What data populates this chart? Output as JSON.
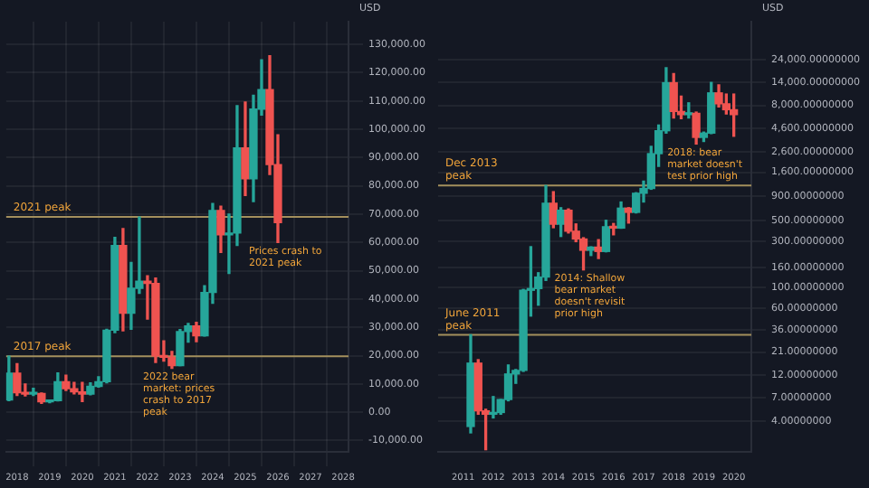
{
  "chart_data": [
    {
      "type": "candlestick",
      "ylabel": "USD",
      "x": [
        "2017-10",
        "2018-01",
        "2018-04",
        "2018-07",
        "2018-10",
        "2019-01",
        "2019-04",
        "2019-07",
        "2019-10",
        "2020-01",
        "2020-04",
        "2020-07",
        "2020-10",
        "2021-01",
        "2021-04",
        "2021-07",
        "2021-10",
        "2022-01",
        "2022-04",
        "2022-07",
        "2022-10",
        "2023-01",
        "2023-04",
        "2023-07",
        "2023-10",
        "2024-01",
        "2024-04",
        "2024-07",
        "2024-10",
        "2025-01",
        "2025-04",
        "2025-07",
        "2025-10",
        "2026-01"
      ],
      "ohlc": [
        [
          4340,
          19800,
          4100,
          13800
        ],
        [
          13800,
          17200,
          5900,
          6900
        ],
        [
          6900,
          9990,
          5800,
          6400
        ],
        [
          6400,
          8500,
          5900,
          6600
        ],
        [
          6600,
          6800,
          3150,
          3700
        ],
        [
          3700,
          4200,
          3350,
          4100
        ],
        [
          4100,
          13900,
          4050,
          10800
        ],
        [
          10800,
          13100,
          7700,
          8300
        ],
        [
          8300,
          10500,
          6500,
          7200
        ],
        [
          7200,
          10500,
          3800,
          6400
        ],
        [
          6400,
          10400,
          6200,
          9150
        ],
        [
          9150,
          12500,
          8900,
          10800
        ],
        [
          10800,
          29300,
          10400,
          29000
        ],
        [
          29000,
          61800,
          28100,
          58900
        ],
        [
          58900,
          64900,
          28800,
          35000
        ],
        [
          35000,
          52900,
          29300,
          43800
        ],
        [
          43800,
          69000,
          42000,
          46300
        ],
        [
          46300,
          48200,
          32900,
          45500
        ],
        [
          45500,
          47400,
          17600,
          19900
        ],
        [
          19900,
          25200,
          18100,
          19400
        ],
        [
          19400,
          21500,
          15500,
          16500
        ],
        [
          16500,
          29200,
          16500,
          28500
        ],
        [
          28500,
          31400,
          24800,
          30500
        ],
        [
          30500,
          31800,
          24900,
          27000
        ],
        [
          27000,
          44700,
          26900,
          42300
        ],
        [
          42300,
          73800,
          38500,
          71300
        ],
        [
          71300,
          72800,
          56500,
          62700
        ],
        [
          62700,
          70000,
          49000,
          63300
        ],
        [
          63300,
          108300,
          58900,
          93400
        ],
        [
          93400,
          109600,
          76600,
          82500
        ],
        [
          82500,
          112000,
          74400,
          107100
        ],
        [
          107100,
          124500,
          105000,
          114000
        ],
        [
          114000,
          126000,
          84000,
          87500
        ],
        [
          87500,
          98000,
          60000,
          67000
        ]
      ],
      "xlim": [
        "2017-09",
        "2028-03"
      ],
      "xticks": [
        "2018",
        "2019",
        "2020",
        "2021",
        "2022",
        "2023",
        "2024",
        "2025",
        "2026",
        "2027",
        "2028"
      ],
      "ylim": [
        -14000,
        138000
      ],
      "yticks": [
        {
          "value": -10000,
          "label": "-10,000.00"
        },
        {
          "value": 0,
          "label": "0.00"
        },
        {
          "value": 10000,
          "label": "10,000.00"
        },
        {
          "value": 20000,
          "label": "20,000.00"
        },
        {
          "value": 30000,
          "label": "30,000.00"
        },
        {
          "value": 40000,
          "label": "40,000.00"
        },
        {
          "value": 50000,
          "label": "50,000.00"
        },
        {
          "value": 60000,
          "label": "60,000.00"
        },
        {
          "value": 70000,
          "label": "70,000.00"
        },
        {
          "value": 80000,
          "label": "80,000.00"
        },
        {
          "value": 90000,
          "label": "90,000.00"
        },
        {
          "value": 100000,
          "label": "100,000.00"
        },
        {
          "value": 110000,
          "label": "110,000.00"
        },
        {
          "value": 120000,
          "label": "120,000.00"
        },
        {
          "value": 130000,
          "label": "130,000.00"
        }
      ],
      "grid": true,
      "ref_lines": [
        {
          "axis": "y",
          "value": 69000,
          "label": "2021 peak",
          "color": "#a38f5c"
        },
        {
          "axis": "y",
          "value": 19800,
          "label": "2017 peak",
          "color": "#a38f5c"
        }
      ],
      "annotations": [
        {
          "text": "2022 bear market: prices crash to 2017 peak",
          "x": "2022-10",
          "y": 15500
        },
        {
          "text": "Prices crash to 2021 peak",
          "x": "2026-01",
          "y": 60000
        }
      ]
    },
    {
      "type": "candlestick",
      "ylabel": "USD",
      "log": true,
      "x": [
        "2011-04",
        "2011-07",
        "2011-10",
        "2012-01",
        "2012-04",
        "2012-07",
        "2012-10",
        "2013-01",
        "2013-04",
        "2013-07",
        "2013-10",
        "2014-01",
        "2014-04",
        "2014-07",
        "2014-10",
        "2015-01",
        "2015-04",
        "2015-07",
        "2015-10",
        "2016-01",
        "2016-04",
        "2016-07",
        "2016-10",
        "2017-01",
        "2017-04",
        "2017-07",
        "2017-10",
        "2018-01",
        "2018-04",
        "2018-07",
        "2018-10",
        "2019-01",
        "2019-04",
        "2019-07",
        "2019-10",
        "2020-01"
      ],
      "ohlc": [
        [
          3.5,
          31.9,
          3,
          16.1
        ],
        [
          16.1,
          17.5,
          4.7,
          5.1
        ],
        [
          5.1,
          5.3,
          2,
          4.7
        ],
        [
          4.7,
          7.2,
          4.3,
          4.9
        ],
        [
          4.9,
          6.7,
          4.7,
          6.7
        ],
        [
          6.7,
          15.4,
          6.5,
          12.4
        ],
        [
          12.4,
          13.8,
          9.9,
          13.5
        ],
        [
          13.5,
          95,
          13.2,
          93
        ],
        [
          93,
          266,
          50,
          97
        ],
        [
          97,
          142,
          65,
          128
        ],
        [
          128,
          1160,
          118,
          757
        ],
        [
          757,
          1000,
          420,
          457
        ],
        [
          457,
          680,
          340,
          640
        ],
        [
          640,
          660,
          370,
          386
        ],
        [
          386,
          460,
          300,
          320
        ],
        [
          320,
          330,
          152,
          244
        ],
        [
          244,
          265,
          215,
          263
        ],
        [
          263,
          315,
          200,
          237
        ],
        [
          237,
          502,
          235,
          430
        ],
        [
          430,
          465,
          354,
          416
        ],
        [
          416,
          780,
          415,
          673
        ],
        [
          673,
          680,
          470,
          608
        ],
        [
          608,
          975,
          600,
          963
        ],
        [
          963,
          1290,
          780,
          1080
        ],
        [
          1080,
          2980,
          1060,
          2500
        ],
        [
          2500,
          4980,
          1840,
          4340
        ],
        [
          4340,
          19800,
          4100,
          13800
        ],
        [
          13800,
          17200,
          5900,
          6900
        ],
        [
          6900,
          9990,
          5800,
          6400
        ],
        [
          6400,
          8500,
          5900,
          6600
        ],
        [
          6600,
          6800,
          3150,
          3700
        ],
        [
          3700,
          4200,
          3350,
          4100
        ],
        [
          4100,
          13900,
          4050,
          10800
        ],
        [
          10800,
          13100,
          7700,
          8300
        ],
        [
          8300,
          10500,
          6500,
          7200
        ],
        [
          7200,
          10500,
          3800,
          6400
        ]
      ],
      "xlim": [
        "2010-03",
        "2020-08"
      ],
      "xticks": [
        "2011",
        "2012",
        "2013",
        "2014",
        "2015",
        "2016",
        "2017",
        "2018",
        "2019",
        "2020"
      ],
      "ylim": [
        1.9,
        60000
      ],
      "yticks": [
        {
          "value": 4,
          "label": "4.00000000"
        },
        {
          "value": 7,
          "label": "7.00000000"
        },
        {
          "value": 12,
          "label": "12.00000000"
        },
        {
          "value": 21,
          "label": "21.00000000"
        },
        {
          "value": 36,
          "label": "36.00000000"
        },
        {
          "value": 60,
          "label": "60.00000000"
        },
        {
          "value": 100,
          "label": "100.00000000"
        },
        {
          "value": 160,
          "label": "160.00000000"
        },
        {
          "value": 300,
          "label": "300.00000000"
        },
        {
          "value": 500,
          "label": "500.00000000"
        },
        {
          "value": 900,
          "label": "900.00000000"
        },
        {
          "value": 1600,
          "label": "1,600.00000000"
        },
        {
          "value": 2600,
          "label": "2,600.00000000"
        },
        {
          "value": 4600,
          "label": "4,600.00000000"
        },
        {
          "value": 8000,
          "label": "8,000.00000000"
        },
        {
          "value": 14000,
          "label": "14,000.00000000"
        },
        {
          "value": 24000,
          "label": "24,000.00000000"
        }
      ],
      "grid": "y",
      "ref_lines": [
        {
          "axis": "y",
          "value": 1160,
          "label": "Dec 2013 peak",
          "color": "#a38f5c"
        },
        {
          "axis": "y",
          "value": 31.9,
          "label": "June 2011 peak",
          "color": "#a38f5c"
        }
      ],
      "annotations": [
        {
          "text": "2014: Shallow bear market doesn't revisit prior high",
          "x": "2015-01",
          "y": 152
        },
        {
          "text": "2018: bear market doesn't test prior high",
          "x": "2018-10",
          "y": 3150
        }
      ]
    }
  ]
}
